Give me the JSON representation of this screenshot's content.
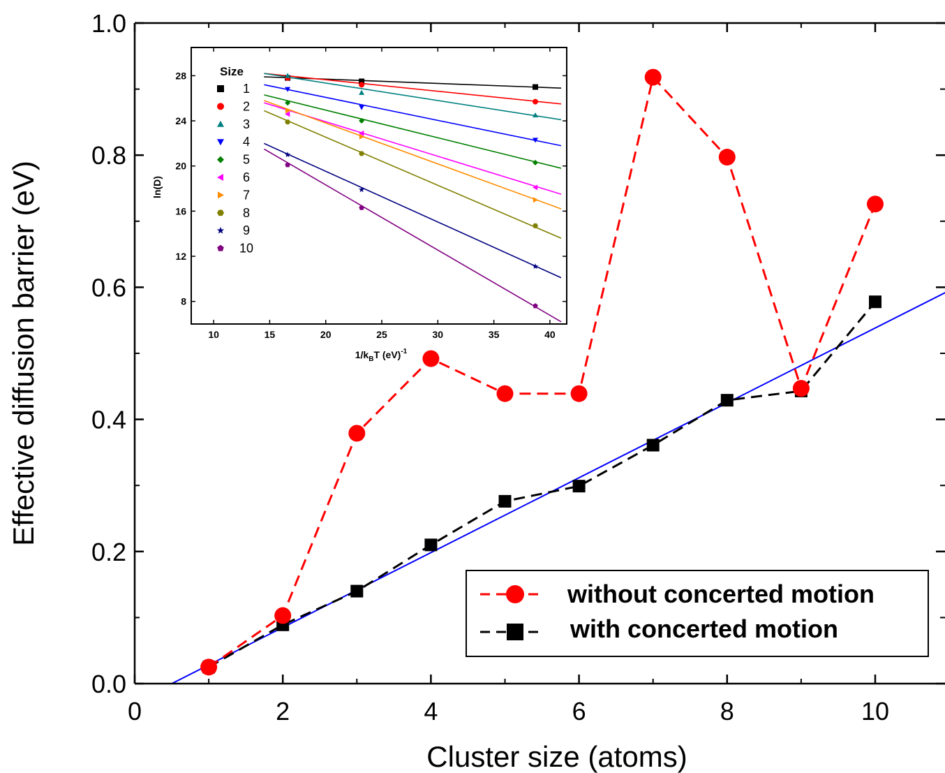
{
  "chart_data": [
    {
      "type": "line",
      "xlabel": "Cluster size (atoms)",
      "ylabel": "Effective diffusion barrier (eV)",
      "xlim": [
        0,
        11
      ],
      "ylim": [
        0.0,
        1.0
      ],
      "xticks": [
        0,
        2,
        4,
        6,
        8,
        10
      ],
      "yticks": [
        0.0,
        0.2,
        0.4,
        0.6,
        0.8,
        1.0
      ],
      "ytick_labels": [
        "0.0",
        "0.2",
        "0.4",
        "0.6",
        "0.8",
        "1.0"
      ],
      "series": [
        {
          "name": "without concerted motion",
          "color": "#ff0000",
          "marker": "circle",
          "linestyle": "dashed",
          "x": [
            1,
            2,
            3,
            4,
            5,
            6,
            7,
            8,
            9,
            10
          ],
          "y": [
            0.025,
            0.103,
            0.379,
            0.492,
            0.439,
            0.439,
            0.918,
            0.797,
            0.447,
            0.726
          ]
        },
        {
          "name": "with concerted motion",
          "color": "#000000",
          "marker": "square",
          "linestyle": "dashed",
          "x": [
            1,
            2,
            3,
            4,
            5,
            6,
            7,
            8,
            9,
            10
          ],
          "y": [
            0.025,
            0.089,
            0.14,
            0.21,
            0.276,
            0.299,
            0.361,
            0.429,
            0.443,
            0.578
          ]
        }
      ],
      "fit_line": {
        "color": "#0000ff",
        "x": [
          0.5,
          11
        ],
        "y": [
          0.0,
          0.595
        ]
      },
      "legend_position": "bottom-right",
      "grid": false
    },
    {
      "type": "scatter",
      "xlabel_main": "1/k",
      "xlabel_sub": "B",
      "xlabel_rest": "T (eV)",
      "xlabel_sup": "-1",
      "ylabel": "ln(D)",
      "xlim": [
        8,
        41.5
      ],
      "ylim": [
        6,
        30.5
      ],
      "xticks": [
        10,
        15,
        20,
        25,
        30,
        35,
        40
      ],
      "yticks": [
        8,
        12,
        16,
        20,
        24,
        28
      ],
      "legend_title": "Size",
      "legend_position": "top-left",
      "grid": false,
      "series": [
        {
          "name": "1",
          "color": "#000000",
          "marker": "square",
          "x": [
            16.6,
            23.2,
            38.7
          ],
          "y": [
            27.8,
            27.5,
            27.0
          ],
          "fit_x": [
            14.5,
            41
          ],
          "fit_y": [
            27.9,
            26.9
          ]
        },
        {
          "name": "2",
          "color": "#ff0000",
          "marker": "circle",
          "x": [
            16.6,
            23.2,
            38.7
          ],
          "y": [
            27.8,
            27.2,
            25.7
          ],
          "fit_x": [
            14.5,
            41
          ],
          "fit_y": [
            28.2,
            25.5
          ]
        },
        {
          "name": "3",
          "color": "#008080",
          "marker": "triangle-up",
          "x": [
            16.6,
            23.2,
            38.7
          ],
          "y": [
            28.0,
            26.5,
            24.5
          ],
          "fit_x": [
            14.5,
            41
          ],
          "fit_y": [
            28.2,
            24.1
          ]
        },
        {
          "name": "4",
          "color": "#0000ff",
          "marker": "triangle-down",
          "x": [
            16.6,
            23.2,
            38.7
          ],
          "y": [
            26.8,
            25.2,
            22.3
          ],
          "fit_x": [
            14.5,
            41
          ],
          "fit_y": [
            27.2,
            21.8
          ]
        },
        {
          "name": "5",
          "color": "#008000",
          "marker": "diamond",
          "x": [
            16.6,
            23.2,
            38.7
          ],
          "y": [
            25.6,
            24.0,
            20.3
          ],
          "fit_x": [
            14.5,
            41
          ],
          "fit_y": [
            26.3,
            19.8
          ]
        },
        {
          "name": "6",
          "color": "#ff00ff",
          "marker": "triangle-left",
          "x": [
            16.6,
            23.2,
            38.7
          ],
          "y": [
            24.6,
            22.9,
            18.1
          ],
          "fit_x": [
            14.5,
            41
          ],
          "fit_y": [
            25.6,
            17.5
          ]
        },
        {
          "name": "7",
          "color": "#ff8c00",
          "marker": "triangle-right",
          "x": [
            16.6,
            23.2,
            38.7
          ],
          "y": [
            24.9,
            22.6,
            17.0
          ],
          "fit_x": [
            14.5,
            41
          ],
          "fit_y": [
            25.8,
            16.2
          ]
        },
        {
          "name": "8",
          "color": "#808000",
          "marker": "hexagon",
          "x": [
            16.6,
            23.2,
            38.7
          ],
          "y": [
            23.9,
            21.1,
            14.7
          ],
          "fit_x": [
            14.5,
            41
          ],
          "fit_y": [
            24.9,
            13.6
          ]
        },
        {
          "name": "9",
          "color": "#000080",
          "marker": "star",
          "x": [
            16.6,
            23.2,
            38.7
          ],
          "y": [
            21.0,
            17.9,
            11.1
          ],
          "fit_x": [
            14.5,
            41
          ],
          "fit_y": [
            22.0,
            10.1
          ]
        },
        {
          "name": "10",
          "color": "#800080",
          "marker": "pentagon",
          "x": [
            16.6,
            23.2,
            38.7
          ],
          "y": [
            20.1,
            16.3,
            7.6
          ],
          "fit_x": [
            14.5,
            41
          ],
          "fit_y": [
            21.5,
            6.2
          ]
        }
      ]
    }
  ],
  "legend": {
    "items": [
      {
        "label": "without concerted motion",
        "color": "#ff0000",
        "marker": "circle"
      },
      {
        "label": "with concerted motion",
        "color": "#000000",
        "marker": "square"
      }
    ]
  }
}
